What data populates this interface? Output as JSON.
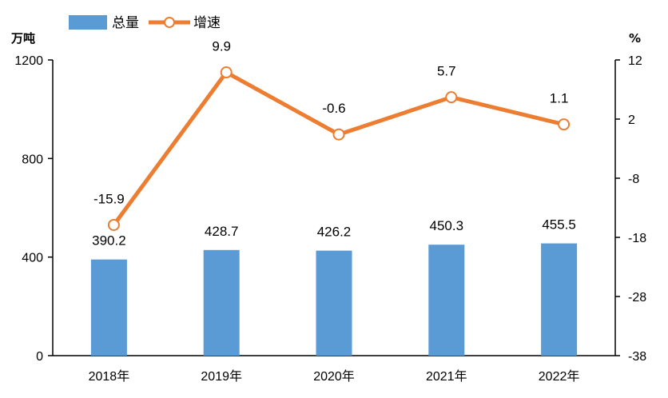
{
  "chart_data": {
    "type": "bar",
    "categories": [
      "2018年",
      "2019年",
      "2020年",
      "2021年",
      "2022年"
    ],
    "series": [
      {
        "name": "总量",
        "type": "bar",
        "axis": "left",
        "values": [
          390.2,
          428.7,
          426.2,
          450.3,
          455.5
        ],
        "labels": [
          "390.2",
          "428.7",
          "426.2",
          "450.3",
          "455.5"
        ],
        "color": "#5B9BD5"
      },
      {
        "name": "增速",
        "type": "line",
        "axis": "right",
        "values": [
          -15.9,
          9.9,
          -0.6,
          5.7,
          1.1
        ],
        "labels": [
          "-15.9",
          "9.9",
          "-0.6",
          "5.7",
          "1.1"
        ],
        "color": "#ED7D31"
      }
    ],
    "y_left": {
      "unit": "万吨",
      "range": [
        0,
        1200
      ],
      "ticks": [
        "0",
        "400",
        "800",
        "1200"
      ]
    },
    "y_right": {
      "unit": "%",
      "range": [
        -38,
        12
      ],
      "ticks": [
        "-38",
        "-28",
        "-18",
        "-8",
        "2",
        "12"
      ]
    },
    "legend_position": "top-left",
    "grid": false
  }
}
